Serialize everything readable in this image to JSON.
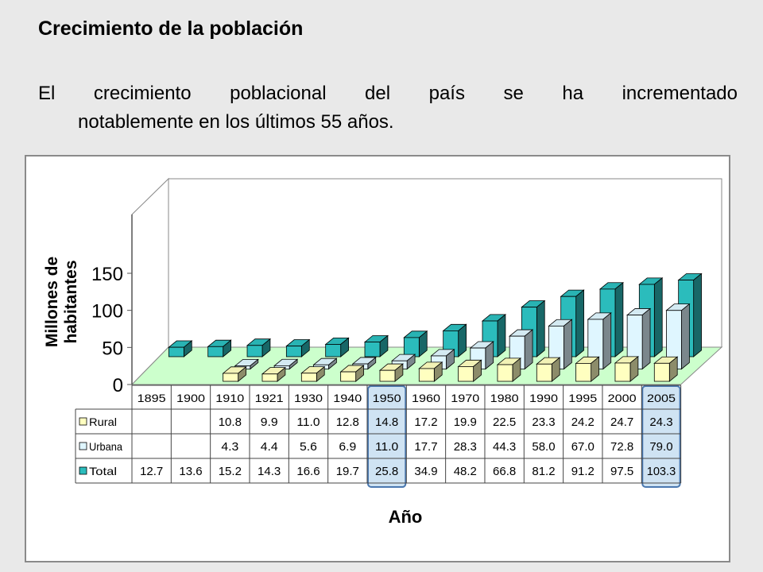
{
  "slide": {
    "title": "Crecimiento de la población",
    "paragraph_words": [
      "El",
      "crecimiento",
      "poblacional",
      "del",
      "país",
      "se",
      "ha",
      "incrementado"
    ],
    "paragraph_line2": "notablemente en los últimos 55 años."
  },
  "chart_data": {
    "type": "bar",
    "categories": [
      "1895",
      "1900",
      "1910",
      "1921",
      "1930",
      "1940",
      "1950",
      "1960",
      "1970",
      "1980",
      "1990",
      "1995",
      "2000",
      "2005"
    ],
    "series": [
      {
        "name": "Rural",
        "values": [
          null,
          null,
          10.8,
          9.9,
          11.0,
          12.8,
          14.8,
          17.2,
          19.9,
          22.5,
          23.3,
          24.2,
          24.7,
          24.3
        ],
        "color": "#ffffc0"
      },
      {
        "name": "Urbana",
        "values": [
          null,
          null,
          4.3,
          4.4,
          5.6,
          6.9,
          11.0,
          17.7,
          28.3,
          44.3,
          58.0,
          67.0,
          72.8,
          79.0
        ],
        "color": "#dff6ff"
      },
      {
        "name": "Total",
        "values": [
          12.7,
          13.6,
          15.2,
          14.3,
          16.6,
          19.7,
          25.8,
          34.9,
          48.2,
          66.8,
          81.2,
          91.2,
          97.5,
          103.3
        ],
        "color": "#2bbcbc"
      }
    ],
    "table_display": [
      [
        "",
        "",
        "10.8",
        "9.9",
        "11.0",
        "12.8",
        "14.8",
        "17.2",
        "19.9",
        "22.5",
        "23.3",
        "24.2",
        "24.7",
        "24.3"
      ],
      [
        "",
        "",
        "4.3",
        "4.4",
        "5.6",
        "6.9",
        "11.0",
        "17.7",
        "28.3",
        "44.3",
        "58.0",
        "67.0",
        "72.8",
        "79.0"
      ],
      [
        "12.7",
        "13.6",
        "15.2",
        "14.3",
        "16.6",
        "19.7",
        "25.8",
        "34.9",
        "48.2",
        "66.8",
        "81.2",
        "91.2",
        "97.5",
        "103.3"
      ]
    ],
    "highlighted_categories": [
      "1950",
      "2005"
    ],
    "ylabel": "Millones de habitantes",
    "xlabel": "Año",
    "ylim": [
      0,
      150
    ],
    "yticks": [
      "0",
      "50",
      "100",
      "150"
    ],
    "floor_color": "#ccffcc",
    "grid": false
  }
}
